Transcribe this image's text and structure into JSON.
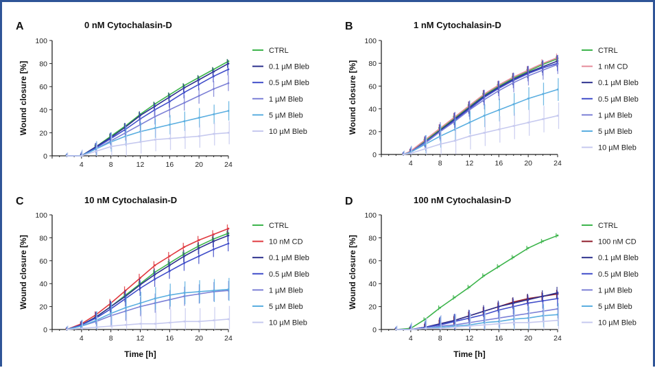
{
  "chart_data": [
    {
      "type": "line",
      "panel_letter": "A",
      "title": "0 nM Cytochalasin-D",
      "xlabel": "",
      "ylabel": "Wound closure [%]",
      "xlim": [
        0,
        24
      ],
      "ylim": [
        0,
        100
      ],
      "xticks": [
        4,
        8,
        12,
        16,
        20,
        24
      ],
      "yticks": [
        0,
        20,
        40,
        60,
        80,
        100
      ],
      "legend_position": "right",
      "series": [
        {
          "name": "CTRL",
          "color": "#3cb44b",
          "x": [
            2,
            4,
            6,
            8,
            10,
            12,
            14,
            16,
            18,
            20,
            22,
            24
          ],
          "y": [
            0,
            0,
            8,
            17,
            26,
            36,
            45,
            53,
            61,
            68,
            75,
            82
          ]
        },
        {
          "name": "0.1 µM Bleb",
          "color": "#2b2f8c",
          "x": [
            2,
            4,
            6,
            8,
            10,
            12,
            14,
            16,
            18,
            20,
            22,
            24
          ],
          "y": [
            0,
            0,
            8,
            16,
            25,
            35,
            43,
            51,
            59,
            66,
            73,
            80
          ]
        },
        {
          "name": "0.5 µM Bleb",
          "color": "#3f4cc9",
          "x": [
            2,
            4,
            6,
            8,
            10,
            12,
            14,
            16,
            18,
            20,
            22,
            24
          ],
          "y": [
            0,
            0,
            7,
            15,
            23,
            32,
            40,
            47,
            55,
            62,
            69,
            75
          ]
        },
        {
          "name": "1 µM Bleb",
          "color": "#7b7fd6",
          "x": [
            2,
            4,
            6,
            8,
            10,
            12,
            14,
            16,
            18,
            20,
            22,
            24
          ],
          "y": [
            0,
            0,
            6,
            13,
            20,
            27,
            34,
            40,
            46,
            52,
            58,
            63
          ]
        },
        {
          "name": "5 µM Bleb",
          "color": "#5aaee0",
          "x": [
            2,
            4,
            6,
            8,
            10,
            12,
            14,
            16,
            18,
            20,
            22,
            24
          ],
          "y": [
            0,
            0,
            6,
            12,
            17,
            21,
            24,
            27,
            30,
            33,
            36,
            39
          ]
        },
        {
          "name": "10 µM Bleb",
          "color": "#c6c9ef",
          "x": [
            2,
            4,
            6,
            8,
            10,
            12,
            14,
            16,
            18,
            20,
            22,
            24
          ],
          "y": [
            0,
            0,
            4,
            8,
            10,
            12,
            14,
            15,
            16,
            17,
            19,
            20
          ]
        }
      ]
    },
    {
      "type": "line",
      "panel_letter": "B",
      "title": "1 nM Cytochalasin-D",
      "xlabel": "",
      "ylabel": "Wound closure [%]",
      "xlim": [
        0,
        24
      ],
      "ylim": [
        0,
        100
      ],
      "xticks": [
        4,
        8,
        12,
        16,
        20,
        24
      ],
      "yticks": [
        0,
        20,
        40,
        60,
        80,
        100
      ],
      "legend_position": "right",
      "series": [
        {
          "name": "CTRL",
          "color": "#3cb44b",
          "x": [
            3,
            4,
            6,
            8,
            10,
            12,
            14,
            16,
            18,
            20,
            22,
            24
          ],
          "y": [
            0,
            2,
            12,
            22,
            32,
            42,
            52,
            60,
            67,
            73,
            79,
            84
          ]
        },
        {
          "name": "1 nM CD",
          "color": "#e58a9a",
          "x": [
            3,
            4,
            6,
            8,
            10,
            12,
            14,
            16,
            18,
            20,
            22,
            24
          ],
          "y": [
            0,
            3,
            13,
            23,
            33,
            43,
            53,
            61,
            68,
            74,
            80,
            85
          ]
        },
        {
          "name": "0.1 µM Bleb",
          "color": "#2b2f8c",
          "x": [
            3,
            4,
            6,
            8,
            10,
            12,
            14,
            16,
            18,
            20,
            22,
            24
          ],
          "y": [
            0,
            2,
            11,
            21,
            31,
            41,
            51,
            59,
            66,
            72,
            77,
            82
          ]
        },
        {
          "name": "0.5 µM Bleb",
          "color": "#3f4cc9",
          "x": [
            3,
            4,
            6,
            8,
            10,
            12,
            14,
            16,
            18,
            20,
            22,
            24
          ],
          "y": [
            0,
            2,
            11,
            20,
            30,
            40,
            50,
            58,
            65,
            71,
            76,
            80
          ]
        },
        {
          "name": "1 µM Bleb",
          "color": "#7b7fd6",
          "x": [
            3,
            4,
            6,
            8,
            10,
            12,
            14,
            16,
            18,
            20,
            22,
            24
          ],
          "y": [
            0,
            2,
            10,
            20,
            29,
            39,
            48,
            56,
            63,
            69,
            74,
            79
          ]
        },
        {
          "name": "5 µM Bleb",
          "color": "#5aaee0",
          "x": [
            3,
            4,
            6,
            8,
            10,
            12,
            14,
            16,
            18,
            20,
            22,
            24
          ],
          "y": [
            0,
            2,
            9,
            16,
            22,
            28,
            34,
            39,
            44,
            49,
            53,
            57
          ]
        },
        {
          "name": "10 µM Bleb",
          "color": "#c6c9ef",
          "x": [
            3,
            4,
            6,
            8,
            10,
            12,
            14,
            16,
            18,
            20,
            22,
            24
          ],
          "y": [
            0,
            1,
            5,
            9,
            12,
            16,
            19,
            22,
            25,
            28,
            31,
            34
          ]
        }
      ]
    },
    {
      "type": "line",
      "panel_letter": "C",
      "title": "10 nM Cytochalasin-D",
      "xlabel": "Time [h]",
      "ylabel": "Wound closure [%]",
      "xlim": [
        0,
        24
      ],
      "ylim": [
        0,
        100
      ],
      "xticks": [
        4,
        8,
        12,
        16,
        20,
        24
      ],
      "yticks": [
        0,
        20,
        40,
        60,
        80,
        100
      ],
      "legend_position": "right",
      "series": [
        {
          "name": "CTRL",
          "color": "#3cb44b",
          "x": [
            2,
            4,
            6,
            8,
            10,
            12,
            14,
            16,
            18,
            20,
            22,
            24
          ],
          "y": [
            0,
            4,
            11,
            20,
            30,
            40,
            50,
            58,
            66,
            73,
            79,
            84
          ]
        },
        {
          "name": "10 nM CD",
          "color": "#e0383e",
          "x": [
            2,
            4,
            6,
            8,
            10,
            12,
            14,
            16,
            18,
            20,
            22,
            24
          ],
          "y": [
            0,
            5,
            13,
            23,
            34,
            45,
            56,
            64,
            72,
            78,
            83,
            88
          ]
        },
        {
          "name": "0.1 µM Bleb",
          "color": "#2b2f8c",
          "x": [
            2,
            4,
            6,
            8,
            10,
            12,
            14,
            16,
            18,
            20,
            22,
            24
          ],
          "y": [
            0,
            4,
            11,
            20,
            29,
            39,
            48,
            56,
            64,
            71,
            77,
            82
          ]
        },
        {
          "name": "0.5 µM Bleb",
          "color": "#3f4cc9",
          "x": [
            2,
            4,
            6,
            8,
            10,
            12,
            14,
            16,
            18,
            20,
            22,
            24
          ],
          "y": [
            0,
            4,
            10,
            18,
            27,
            36,
            44,
            51,
            58,
            64,
            70,
            75
          ]
        },
        {
          "name": "1 µM Bleb",
          "color": "#7b7fd6",
          "x": [
            2,
            4,
            6,
            8,
            10,
            12,
            14,
            16,
            18,
            20,
            22,
            24
          ],
          "y": [
            0,
            3,
            7,
            12,
            16,
            20,
            23,
            26,
            29,
            31,
            33,
            34
          ]
        },
        {
          "name": "5 µM Bleb",
          "color": "#5aaee0",
          "x": [
            2,
            4,
            6,
            8,
            10,
            12,
            14,
            16,
            18,
            20,
            22,
            24
          ],
          "y": [
            0,
            3,
            8,
            14,
            19,
            23,
            27,
            30,
            32,
            33,
            34,
            35
          ]
        },
        {
          "name": "10 µM Bleb",
          "color": "#c6c9ef",
          "x": [
            2,
            4,
            6,
            8,
            10,
            12,
            14,
            16,
            18,
            20,
            22,
            24
          ],
          "y": [
            0,
            1,
            2,
            3,
            4,
            5,
            5,
            6,
            7,
            7,
            8,
            9
          ]
        }
      ]
    },
    {
      "type": "line",
      "panel_letter": "D",
      "title": "100 nM Cytochalasin-D",
      "xlabel": "Time [h]",
      "ylabel": "Wound closure [%]",
      "xlim": [
        0,
        24
      ],
      "ylim": [
        0,
        100
      ],
      "xticks": [
        4,
        8,
        12,
        16,
        20,
        24
      ],
      "yticks": [
        0,
        20,
        40,
        60,
        80,
        100
      ],
      "legend_position": "right",
      "series": [
        {
          "name": "CTRL",
          "color": "#3cb44b",
          "x": [
            2,
            4,
            6,
            8,
            10,
            12,
            14,
            16,
            18,
            20,
            22,
            24
          ],
          "y": [
            0,
            1,
            9,
            19,
            28,
            37,
            47,
            55,
            63,
            71,
            77,
            82
          ]
        },
        {
          "name": "100 nM CD",
          "color": "#8e1b2a",
          "x": [
            2,
            4,
            6,
            8,
            10,
            12,
            14,
            16,
            18,
            20,
            22,
            24
          ],
          "y": [
            0,
            0,
            2,
            5,
            8,
            12,
            16,
            20,
            24,
            27,
            29,
            31
          ]
        },
        {
          "name": "0.1 µM Bleb",
          "color": "#2b2f8c",
          "x": [
            2,
            4,
            6,
            8,
            10,
            12,
            14,
            16,
            18,
            20,
            22,
            24
          ],
          "y": [
            0,
            0,
            2,
            5,
            8,
            12,
            16,
            20,
            23,
            26,
            29,
            32
          ]
        },
        {
          "name": "0.5 µM Bleb",
          "color": "#3f4cc9",
          "x": [
            2,
            4,
            6,
            8,
            10,
            12,
            14,
            16,
            18,
            20,
            22,
            24
          ],
          "y": [
            0,
            0,
            2,
            4,
            7,
            10,
            13,
            17,
            20,
            23,
            25,
            27
          ]
        },
        {
          "name": "1 µM Bleb",
          "color": "#7b7fd6",
          "x": [
            2,
            4,
            6,
            8,
            10,
            12,
            14,
            16,
            18,
            20,
            22,
            24
          ],
          "y": [
            0,
            0,
            1,
            3,
            4,
            6,
            8,
            10,
            12,
            14,
            16,
            18
          ]
        },
        {
          "name": "5 µM Bleb",
          "color": "#5aaee0",
          "x": [
            2,
            4,
            6,
            8,
            10,
            12,
            14,
            16,
            18,
            20,
            22,
            24
          ],
          "y": [
            0,
            0,
            1,
            2,
            3,
            4,
            6,
            7,
            9,
            10,
            12,
            13
          ]
        },
        {
          "name": "10 µM Bleb",
          "color": "#c6c9ef",
          "x": [
            2,
            4,
            6,
            8,
            10,
            12,
            14,
            16,
            18,
            20,
            22,
            24
          ],
          "y": [
            0,
            0,
            1,
            1,
            2,
            3,
            4,
            5,
            6,
            6,
            7,
            8
          ]
        }
      ]
    }
  ]
}
